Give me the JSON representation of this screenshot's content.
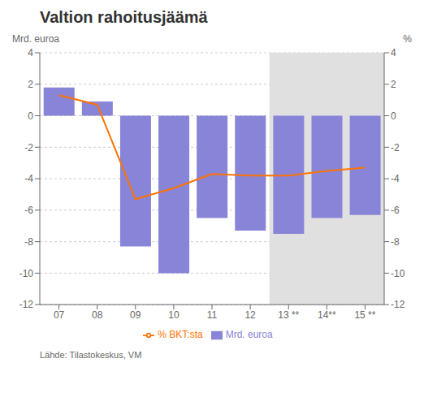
{
  "chart_data": {
    "type": "bar",
    "title": "Valtion rahoitusjäämä",
    "y_label": "Mrd. euroa",
    "y2_label": "%",
    "source": "Lähde: Tilastokeskus, VM",
    "categories": [
      "07",
      "08",
      "09",
      "10",
      "11",
      "12",
      "13 **",
      "14**",
      "15 **"
    ],
    "series": [
      {
        "name": "Mrd. euroa",
        "type": "bar",
        "color": "#8884d8",
        "values": [
          1.8,
          0.9,
          -8.3,
          -10.0,
          -6.5,
          -7.3,
          -7.5,
          -6.5,
          -6.3
        ]
      },
      {
        "name": "% BKT:sta",
        "type": "line",
        "color": "#ff7300",
        "axis": "y2",
        "values": [
          1.3,
          0.7,
          -5.3,
          -4.6,
          -3.7,
          -3.8,
          -3.8,
          -3.5,
          -3.3
        ]
      }
    ],
    "ylim": [
      -12,
      4
    ],
    "yticks": [
      -12,
      -10,
      -8,
      -6,
      -4,
      -2,
      0,
      2,
      4
    ],
    "y2lim": [
      -12,
      4
    ],
    "y2ticks": [
      -12,
      -10,
      -8,
      -6,
      -4,
      -2,
      0,
      2,
      4
    ],
    "grid": true,
    "legend": "bottom",
    "shaded_region": {
      "from": "13 **",
      "to": "15 **",
      "color": "#e0e0e0"
    }
  }
}
